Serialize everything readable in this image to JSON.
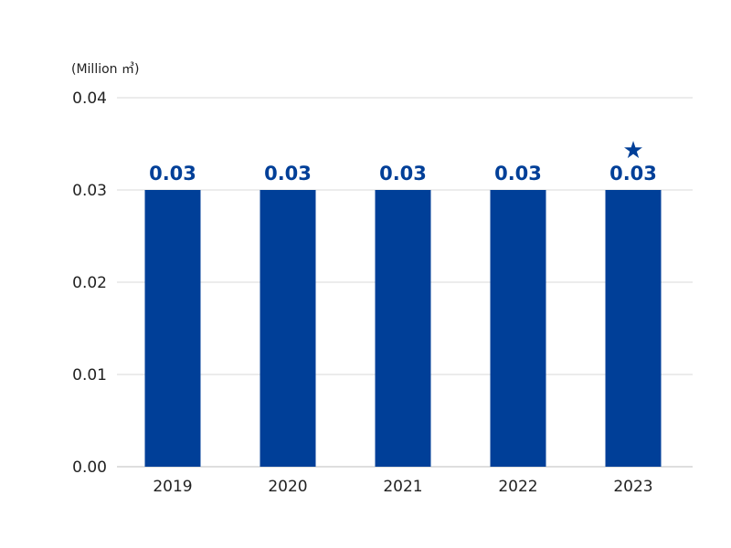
{
  "chart_data": {
    "type": "bar",
    "unit_label": "(Million ㎥)",
    "categories": [
      "2019",
      "2020",
      "2021",
      "2022",
      "2023"
    ],
    "values": [
      0.03,
      0.03,
      0.03,
      0.03,
      0.03
    ],
    "value_labels": [
      "0.03",
      "0.03",
      "0.03",
      "0.03",
      "0.03"
    ],
    "y_ticks": [
      "0.00",
      "0.01",
      "0.02",
      "0.03",
      "0.04"
    ],
    "ylim": [
      0,
      0.04
    ],
    "grid": true,
    "legend": "none",
    "star_marker": {
      "category": "2023",
      "symbol": "★"
    },
    "colors": {
      "bar": "#003f98",
      "value_label": "#003f98",
      "star": "#003f98"
    }
  }
}
